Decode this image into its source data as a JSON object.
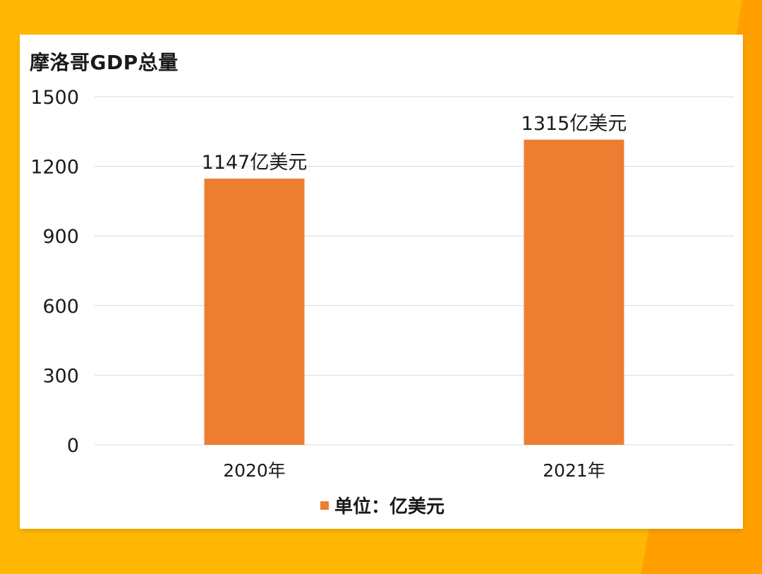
{
  "chart_data": {
    "type": "bar",
    "title": "摩洛哥GDP总量",
    "categories": [
      "2020年",
      "2021年"
    ],
    "series": [
      {
        "name": "单位：亿美元",
        "values": [
          1147,
          1315
        ],
        "data_labels": [
          "1147亿美元",
          "1315亿美元"
        ],
        "color": "#ED7D31"
      }
    ],
    "yticks": [
      "1500",
      "1200",
      "900",
      "600",
      "300",
      "0"
    ],
    "ylim": [
      0,
      1500
    ],
    "grid": true,
    "legend_position": "bottom"
  },
  "colors": {
    "background": "#FFB703",
    "background_accent": "#FF9F00",
    "bar": "#ED7D31",
    "grid": "#D9D9D9"
  }
}
